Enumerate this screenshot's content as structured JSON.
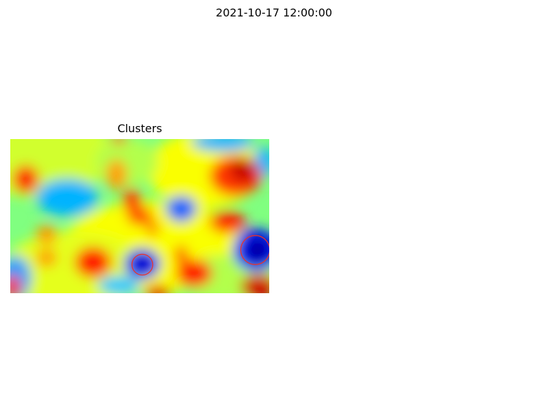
{
  "figure": {
    "title": "2021-10-17 12:00:00"
  },
  "chart_data": {
    "type": "heatmap",
    "title": "Clusters",
    "colormap": "jet",
    "axes_visible": false,
    "grid": false,
    "colors": {
      "background": "#00ffff",
      "circle": "#e8312b",
      "deep_blue": "#0000c8",
      "blue": "#0a50ff",
      "cyan": "#00c8ff",
      "green": "#6cffa0",
      "yellow": "#faff00",
      "orange": "#ff8c00",
      "red": "#e81e00",
      "dark_red": "#c80000"
    },
    "field_blobs": [
      {
        "value": 0.58,
        "cx": 0.1,
        "cy": 0.1,
        "rx": 0.3,
        "ry": 0.28
      },
      {
        "value": 0.62,
        "cx": 0.55,
        "cy": 0.7,
        "rx": 0.35,
        "ry": 0.3
      },
      {
        "value": 0.6,
        "cx": 0.25,
        "cy": 0.85,
        "rx": 0.28,
        "ry": 0.25
      },
      {
        "value": 0.62,
        "cx": 0.75,
        "cy": 0.2,
        "rx": 0.22,
        "ry": 0.25
      },
      {
        "value": 0.55,
        "cx": 0.85,
        "cy": 0.9,
        "rx": 0.2,
        "ry": 0.15
      },
      {
        "value": 0.55,
        "cx": 0.45,
        "cy": 0.15,
        "rx": 0.12,
        "ry": 0.15
      },
      {
        "value": 0.3,
        "cx": 0.22,
        "cy": 0.38,
        "rx": 0.12,
        "ry": 0.12
      },
      {
        "value": 0.28,
        "cx": 0.02,
        "cy": 0.9,
        "rx": 0.06,
        "ry": 0.14
      },
      {
        "value": 0.3,
        "cx": 0.82,
        "cy": 0.02,
        "rx": 0.12,
        "ry": 0.06
      },
      {
        "value": 0.32,
        "cx": 0.42,
        "cy": 0.95,
        "rx": 0.08,
        "ry": 0.06
      },
      {
        "value": 0.25,
        "cx": 0.66,
        "cy": 0.45,
        "rx": 0.06,
        "ry": 0.08
      },
      {
        "value": 0.3,
        "cx": 0.98,
        "cy": 0.15,
        "rx": 0.04,
        "ry": 0.1
      },
      {
        "value": 0.22,
        "cx": 0.66,
        "cy": 0.46,
        "rx": 0.05,
        "ry": 0.08
      },
      {
        "value": 0.15,
        "cx": 0.51,
        "cy": 0.81,
        "rx": 0.07,
        "ry": 0.1
      },
      {
        "value": 0.06,
        "cx": 0.51,
        "cy": 0.81,
        "rx": 0.035,
        "ry": 0.055
      },
      {
        "value": 0.15,
        "cx": 0.95,
        "cy": 0.72,
        "rx": 0.09,
        "ry": 0.14
      },
      {
        "value": 0.04,
        "cx": 0.955,
        "cy": 0.72,
        "rx": 0.05,
        "ry": 0.09
      },
      {
        "value": 0.82,
        "cx": 0.06,
        "cy": 0.26,
        "rx": 0.05,
        "ry": 0.09
      },
      {
        "value": 0.88,
        "cx": 0.06,
        "cy": 0.27,
        "rx": 0.03,
        "ry": 0.05
      },
      {
        "value": 0.72,
        "cx": 0.41,
        "cy": 0.23,
        "rx": 0.04,
        "ry": 0.1
      },
      {
        "value": 0.82,
        "cx": 0.47,
        "cy": 0.4,
        "rx": 0.035,
        "ry": 0.08
      },
      {
        "value": 0.8,
        "cx": 0.5,
        "cy": 0.5,
        "rx": 0.05,
        "ry": 0.06
      },
      {
        "value": 0.75,
        "cx": 0.55,
        "cy": 0.58,
        "rx": 0.025,
        "ry": 0.05
      },
      {
        "value": 0.82,
        "cx": 0.87,
        "cy": 0.24,
        "rx": 0.1,
        "ry": 0.13
      },
      {
        "value": 0.93,
        "cx": 0.9,
        "cy": 0.2,
        "rx": 0.05,
        "ry": 0.08
      },
      {
        "value": 0.85,
        "cx": 0.84,
        "cy": 0.54,
        "rx": 0.07,
        "ry": 0.07
      },
      {
        "value": 0.73,
        "cx": 0.14,
        "cy": 0.62,
        "rx": 0.04,
        "ry": 0.06
      },
      {
        "value": 0.72,
        "cx": 0.14,
        "cy": 0.77,
        "rx": 0.04,
        "ry": 0.06
      },
      {
        "value": 0.85,
        "cx": 0.32,
        "cy": 0.8,
        "rx": 0.07,
        "ry": 0.1
      },
      {
        "value": 0.85,
        "cx": 0.71,
        "cy": 0.87,
        "rx": 0.07,
        "ry": 0.09
      },
      {
        "value": 0.8,
        "cx": 0.66,
        "cy": 0.75,
        "rx": 0.025,
        "ry": 0.06
      },
      {
        "value": 0.92,
        "cx": 0.96,
        "cy": 0.96,
        "rx": 0.07,
        "ry": 0.08
      },
      {
        "value": 0.85,
        "cx": 0.01,
        "cy": 0.96,
        "rx": 0.03,
        "ry": 0.08
      },
      {
        "value": 0.9,
        "cx": 0.57,
        "cy": 1.0,
        "rx": 0.05,
        "ry": 0.05
      },
      {
        "value": 0.82,
        "cx": 0.42,
        "cy": 0.0,
        "rx": 0.03,
        "ry": 0.03
      }
    ],
    "circles": [
      {
        "cx": 0.51,
        "cy": 0.815,
        "r": 0.04
      },
      {
        "cx": 0.946,
        "cy": 0.72,
        "r": 0.056
      }
    ]
  }
}
